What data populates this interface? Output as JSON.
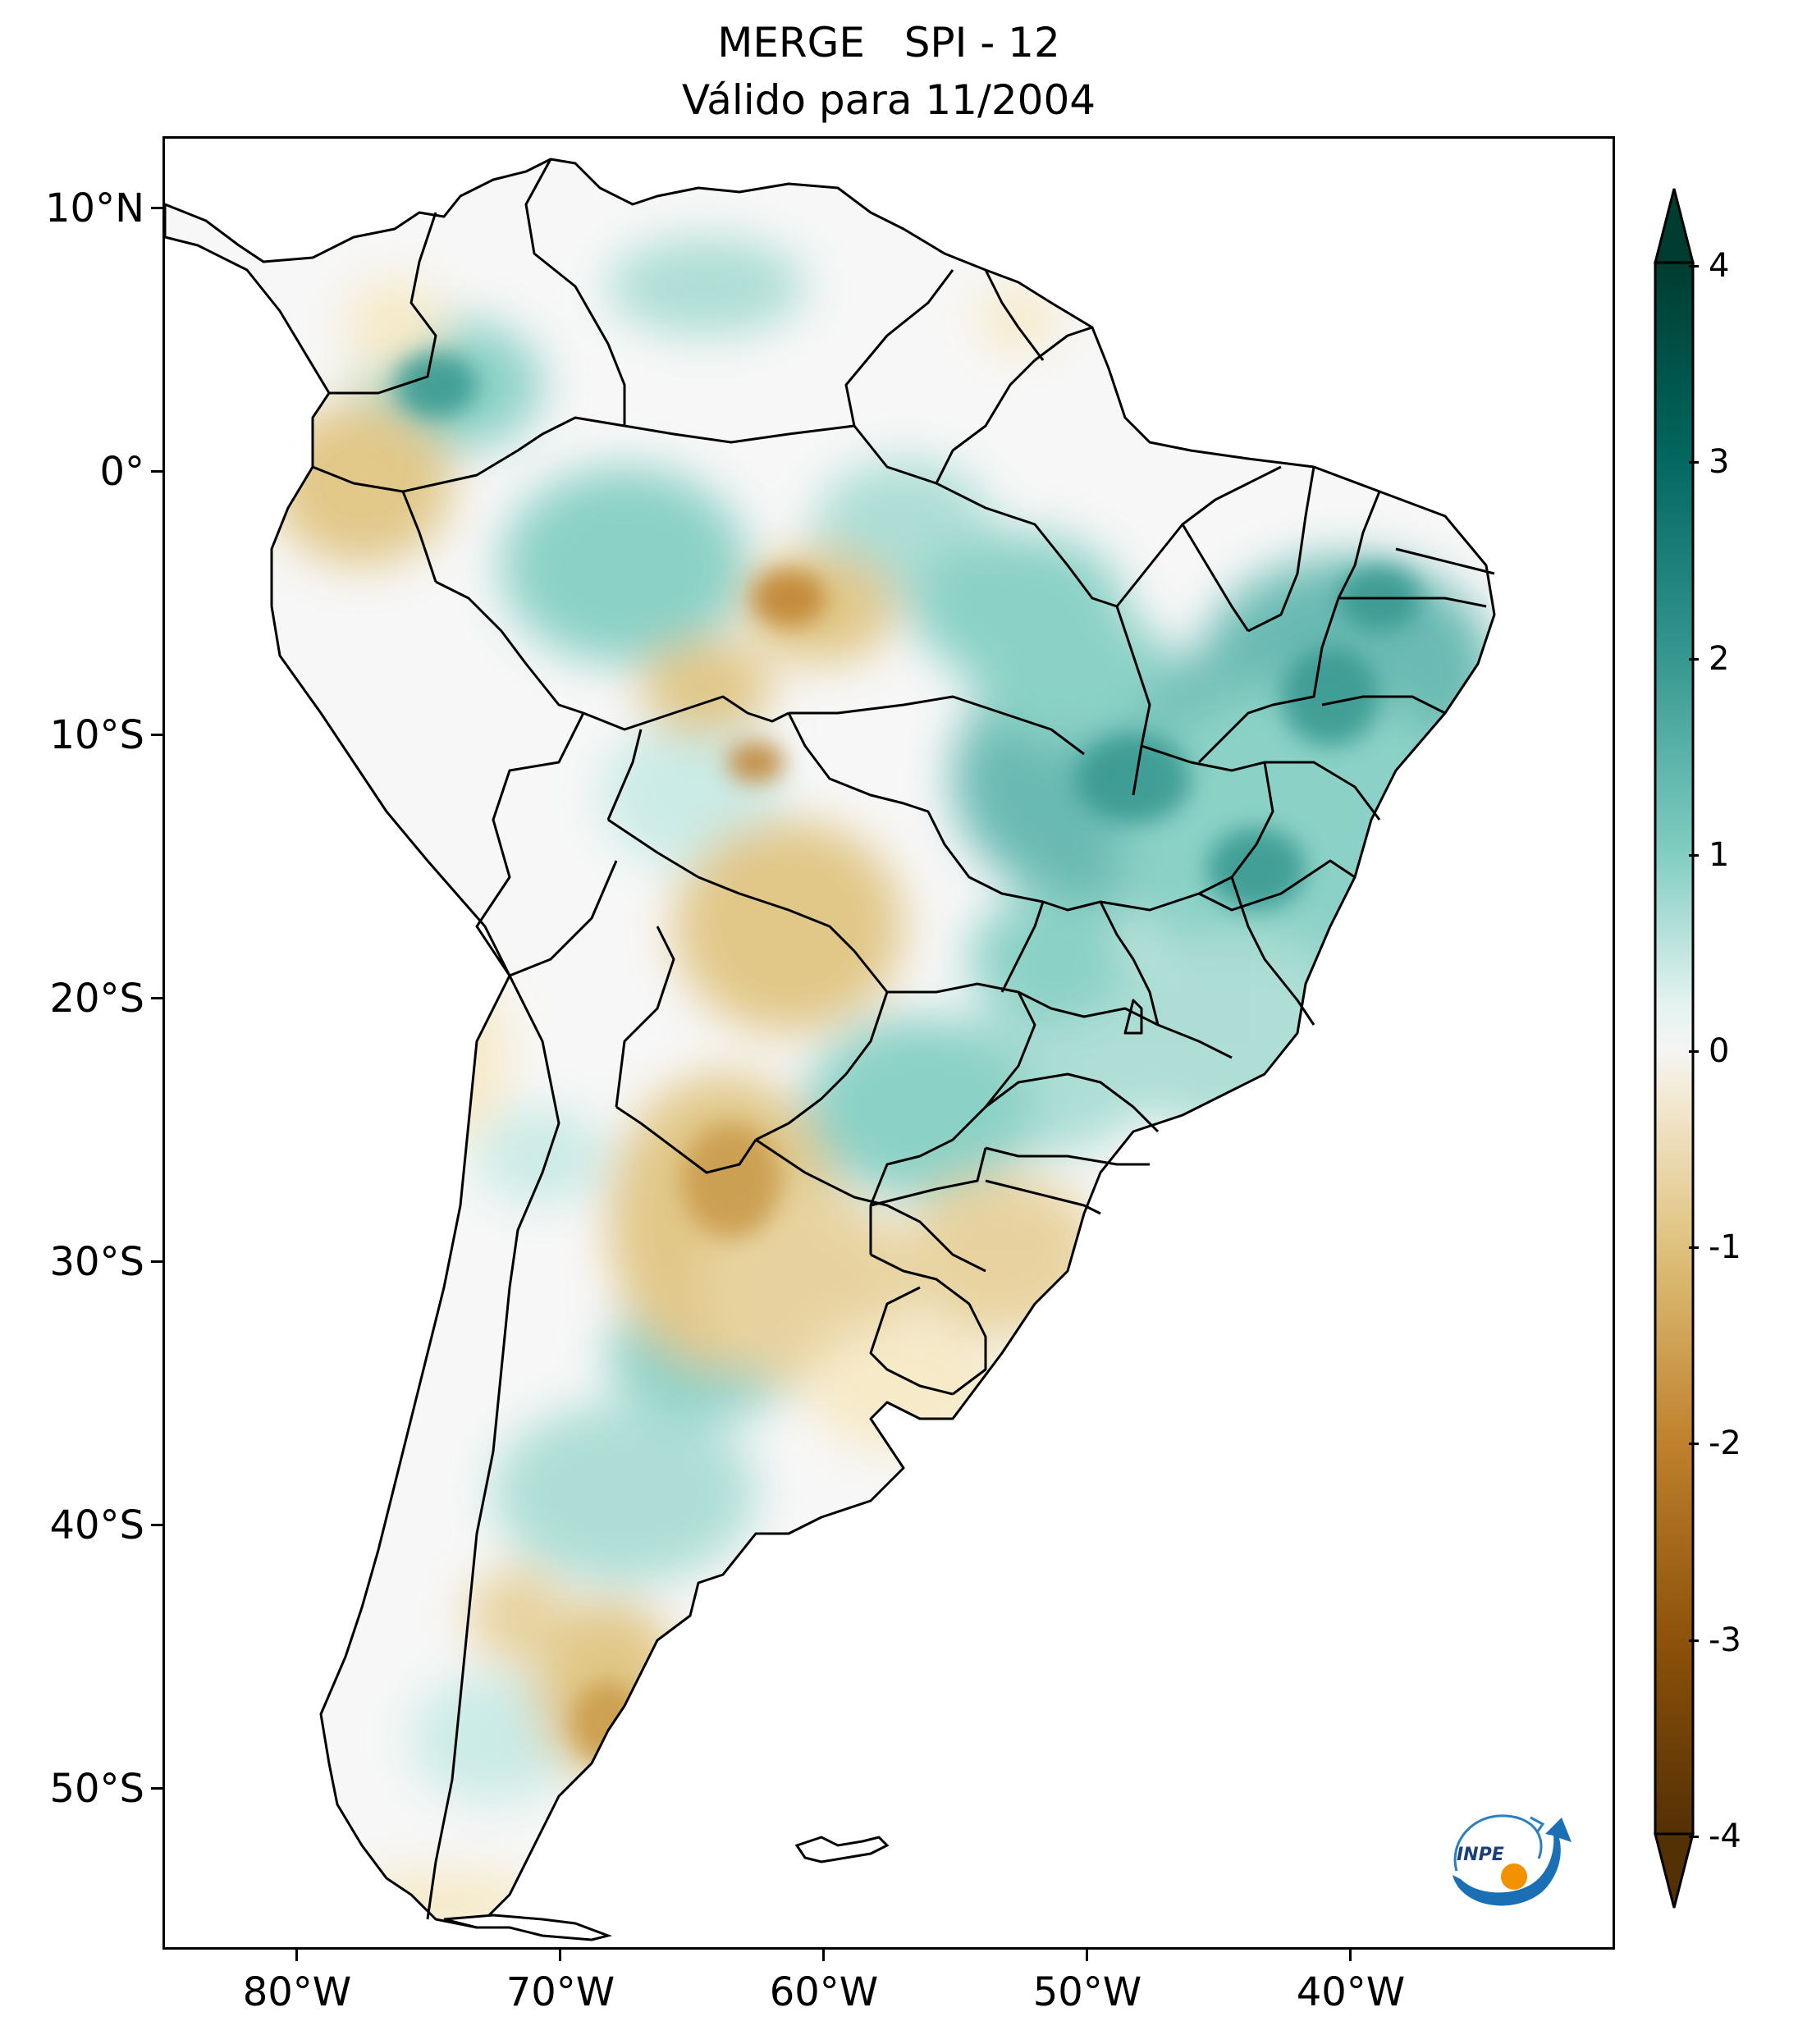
{
  "title": {
    "line1": "MERGE   SPI - 12",
    "line2": "Válido para 11/2004"
  },
  "axes": {
    "lat_labels": [
      "10°N",
      "0°",
      "10°S",
      "20°S",
      "30°S",
      "40°S",
      "50°S"
    ],
    "lon_labels": [
      "80°W",
      "70°W",
      "60°W",
      "50°W",
      "40°W"
    ],
    "lat_values": [
      10,
      0,
      -10,
      -20,
      -30,
      -40,
      -50
    ],
    "lon_values": [
      -80,
      -70,
      -60,
      -50,
      -40
    ],
    "extent": {
      "lon": [
        -85,
        -30
      ],
      "lat": [
        -56,
        13
      ]
    }
  },
  "colorbar": {
    "tick_labels": [
      "4",
      "3",
      "2",
      "1",
      "0",
      "-1",
      "-2",
      "-3",
      "-4"
    ],
    "tick_values": [
      4,
      3,
      2,
      1,
      0,
      -1,
      -2,
      -3,
      -4
    ],
    "range": [
      -4,
      4
    ],
    "extend": "both",
    "colormap": "BrBG",
    "colors": {
      "dry_extreme": "#543005",
      "dry_strong": "#8c510a",
      "dry_moderate": "#bf812d",
      "dry_weak": "#dfc27d",
      "dry_slight": "#f6e8c3",
      "neutral": "#f5f5f5",
      "wet_slight": "#c7eae5",
      "wet_weak": "#80cdc1",
      "wet_moderate": "#35978f",
      "wet_strong": "#01665e",
      "wet_extreme": "#003c30"
    }
  },
  "logo": {
    "text": "INPE",
    "icon": "inpe-logo-icon"
  }
}
